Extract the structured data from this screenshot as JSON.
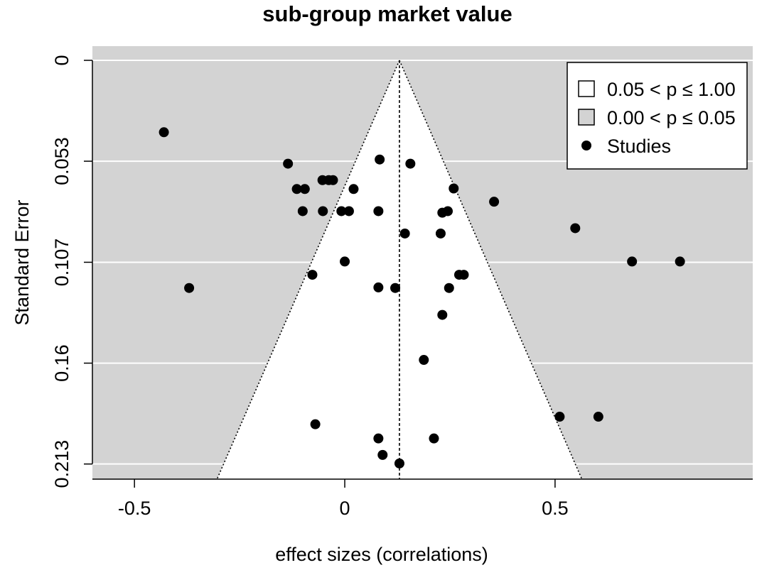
{
  "chart_data": {
    "type": "scatter",
    "title": "sub-group market value",
    "xlabel": "effect sizes (correlations)",
    "ylabel": "Standard Error",
    "xlim": [
      -0.6,
      0.97
    ],
    "ylim": [
      0.2213,
      0
    ],
    "x_ticks": [
      -0.5,
      0,
      0.5
    ],
    "x_tick_labels": [
      "-0.5",
      "0",
      "0.5"
    ],
    "y_ticks": [
      0,
      0.0533,
      0.1067,
      0.16,
      0.2133
    ],
    "y_tick_labels": [
      "0",
      "0.053",
      "0.107",
      "0.16",
      "0.213"
    ],
    "grid": true,
    "funnel": {
      "center": 0.13,
      "z": 1.96,
      "max_se": 0.2213
    },
    "colors": {
      "panel": "#d3d3d3",
      "funnel_fill": "#ffffff",
      "gridline": "#ffffff",
      "points": "#000000"
    },
    "legend": {
      "position": "top-right",
      "entries": [
        {
          "label": "0.05 < p ≤ 1.00",
          "marker": "square",
          "fill": "#ffffff"
        },
        {
          "label": "0.00 < p ≤ 0.05",
          "marker": "square",
          "fill": "#d3d3d3"
        },
        {
          "label": "Studies",
          "marker": "circle",
          "fill": "#000000"
        }
      ]
    },
    "points": [
      {
        "x": -0.43,
        "y": 0.038
      },
      {
        "x": -0.37,
        "y": 0.1203
      },
      {
        "x": -0.135,
        "y": 0.0546
      },
      {
        "x": 0.083,
        "y": 0.0524
      },
      {
        "x": 0.156,
        "y": 0.0546
      },
      {
        "x": -0.053,
        "y": 0.0633
      },
      {
        "x": -0.038,
        "y": 0.0633
      },
      {
        "x": -0.028,
        "y": 0.0633
      },
      {
        "x": -0.114,
        "y": 0.068
      },
      {
        "x": -0.095,
        "y": 0.068
      },
      {
        "x": 0.021,
        "y": 0.068
      },
      {
        "x": 0.259,
        "y": 0.0677
      },
      {
        "x": 0.355,
        "y": 0.0747
      },
      {
        "x": -0.1,
        "y": 0.0797
      },
      {
        "x": -0.052,
        "y": 0.0797
      },
      {
        "x": -0.008,
        "y": 0.0797
      },
      {
        "x": 0.01,
        "y": 0.0797
      },
      {
        "x": 0.08,
        "y": 0.0797
      },
      {
        "x": 0.232,
        "y": 0.0805
      },
      {
        "x": 0.245,
        "y": 0.0797
      },
      {
        "x": 0.548,
        "y": 0.0887
      },
      {
        "x": 0.143,
        "y": 0.0915
      },
      {
        "x": 0.228,
        "y": 0.0915
      },
      {
        "x": 0.0,
        "y": 0.1063
      },
      {
        "x": 0.683,
        "y": 0.1063
      },
      {
        "x": 0.797,
        "y": 0.1063
      },
      {
        "x": -0.077,
        "y": 0.1133
      },
      {
        "x": 0.272,
        "y": 0.1133
      },
      {
        "x": 0.283,
        "y": 0.1133
      },
      {
        "x": 0.08,
        "y": 0.12
      },
      {
        "x": 0.12,
        "y": 0.1203
      },
      {
        "x": 0.248,
        "y": 0.1203
      },
      {
        "x": 0.232,
        "y": 0.1345
      },
      {
        "x": 0.188,
        "y": 0.1583
      },
      {
        "x": 0.511,
        "y": 0.1883
      },
      {
        "x": 0.603,
        "y": 0.1883
      },
      {
        "x": -0.07,
        "y": 0.1923
      },
      {
        "x": 0.08,
        "y": 0.1998
      },
      {
        "x": 0.212,
        "y": 0.1998
      },
      {
        "x": 0.09,
        "y": 0.2085
      },
      {
        "x": 0.13,
        "y": 0.213
      }
    ]
  }
}
